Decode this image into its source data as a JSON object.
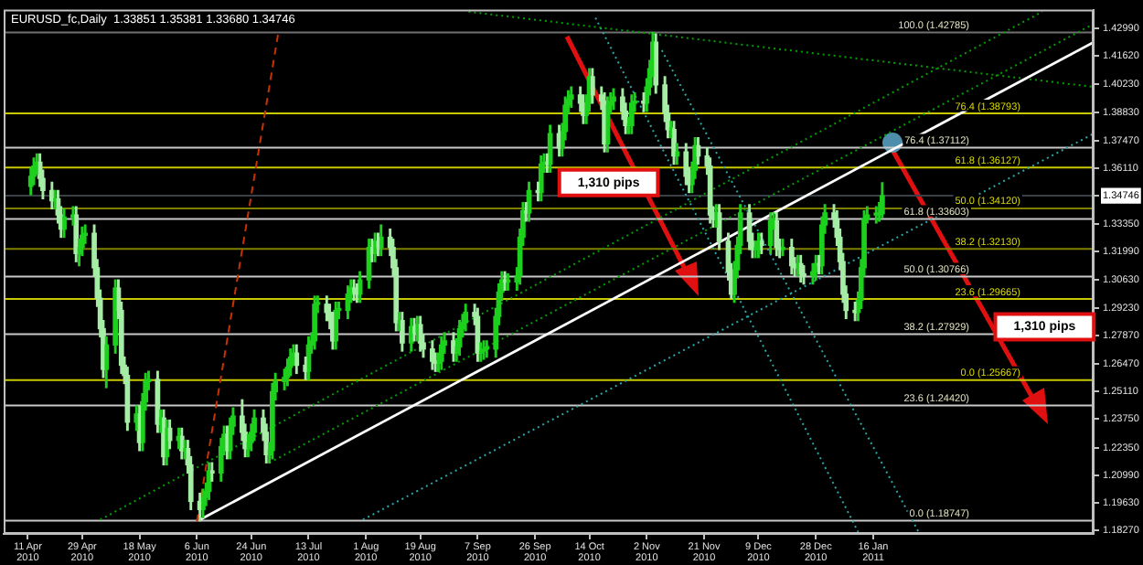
{
  "chart_data": {
    "type": "candlestick",
    "title": "EURUSD_fc,Daily  1.33851 1.35381 1.33680 1.34746",
    "marker": "none",
    "colors": [
      "#1ed01e",
      "#1ed01e",
      "#1ed01e",
      "#a5eca5",
      "#a5eca5",
      "#a5eca5",
      "#1ed01e",
      "#a5eca5",
      "#a5eca5",
      "#1ed01e",
      "#1ed01e",
      "#a5eca5",
      "#1ed01e",
      "#1ed01e",
      "#1ed01e",
      "#a5eca5",
      "#a5eca5",
      "#a5eca5",
      "#a5eca5",
      "#1ed01e",
      "#1ed01e",
      "#a5eca5",
      "#a5eca5",
      "#a5eca5",
      "#a5eca5",
      "#1ed01e",
      "#a5eca5",
      "#1ed01e",
      "#1ed01e",
      "#1ed01e",
      "#a5eca5",
      "#1ed01e",
      "#a5eca5",
      "#1ed01e",
      "#a5eca5",
      "#1ed01e",
      "#a5eca5",
      "#1ed01e",
      "#a5eca5",
      "#a5eca5",
      "#a5eca5",
      "#1ed01e",
      "#1ed01e",
      "#1ed01e",
      "#a5eca5",
      "#1ed01e",
      "#1ed01e",
      "#a5eca5",
      "#1ed01e",
      "#1ed01e",
      "#a5eca5",
      "#a5eca5",
      "#1ed01e",
      "#1ed01e",
      "#1ed01e",
      "#a5eca5",
      "#a5eca5",
      "#1ed01e",
      "#1ed01e",
      "#1ed01e",
      "#1ed01e",
      "#1ed01e",
      "#1ed01e",
      "#1ed01e",
      "#a5eca5",
      "#a5eca5",
      "#1ed01e",
      "#1ed01e",
      "#1ed01e",
      "#1ed01e",
      "#a5eca5",
      "#a5eca5",
      "#a5eca5",
      "#1ed01e",
      "#1ed01e",
      "#1ed01e",
      "#1ed01e",
      "#a5eca5",
      "#a5eca5",
      "#1ed01e",
      "#1ed01e",
      "#a5eca5",
      "#1ed01e",
      "#a5eca5",
      "#1ed01e",
      "#a5eca5",
      "#a5eca5",
      "#a5eca5",
      "#1ed01e",
      "#a5eca5",
      "#1ed01e",
      "#a5eca5",
      "#1ed01e",
      "#a5eca5",
      "#a5eca5",
      "#a5eca5",
      "#a5eca5",
      "#1ed01e",
      "#1ed01e",
      "#1ed01e",
      "#a5eca5",
      "#1ed01e",
      "#1ed01e",
      "#1ed01e",
      "#1ed01e",
      "#a5eca5",
      "#a5eca5",
      "#1ed01e",
      "#1ed01e",
      "#1ed01e",
      "#1ed01e",
      "#1ed01e",
      "#1ed01e",
      "#a5eca5",
      "#1ed01e",
      "#1ed01e",
      "#1ed01e",
      "#1ed01e",
      "#a5eca5",
      "#1ed01e",
      "#a5eca5",
      "#1ed01e",
      "#1ed01e",
      "#a5eca5",
      "#1ed01e",
      "#a5eca5",
      "#1ed01e",
      "#1ed01e",
      "#1ed01e",
      "#1ed01e",
      "#a5eca5",
      "#a5eca5",
      "#1ed01e",
      "#1ed01e",
      "#a5eca5",
      "#a5eca5",
      "#a5eca5",
      "#1ed01e",
      "#1ed01e",
      "#1ed01e",
      "#a5eca5",
      "#a5eca5",
      "#1ed01e",
      "#1ed01e",
      "#1ed01e",
      "#a5eca5",
      "#1ed01e",
      "#1ed01e",
      "#1ed01e",
      "#a5eca5",
      "#a5eca5",
      "#a5eca5",
      "#1ed01e",
      "#a5eca5",
      "#1ed01e",
      "#a5eca5",
      "#a5eca5",
      "#1ed01e",
      "#1ed01e",
      "#a5eca5",
      "#a5eca5",
      "#a5eca5",
      "#a5eca5",
      "#1ed01e",
      "#a5eca5",
      "#a5eca5",
      "#a5eca5",
      "#1ed01e",
      "#1ed01e",
      "#1ed01e",
      "#a5eca5",
      "#a5eca5",
      "#1ed01e",
      "#1ed01e",
      "#a5eca5",
      "#1ed01e",
      "#1ed01e",
      "#a5eca5",
      "#a5eca5",
      "#1ed01e",
      "#a5eca5",
      "#a5eca5",
      "#1ed01e",
      "#a5eca5",
      "#a5eca5",
      "#1ed01e",
      "#1ed01e",
      "#a5eca5",
      "#1ed01e",
      "#1ed01e",
      "#a5eca5",
      "#a5eca5",
      "#a5eca5",
      "#a5eca5",
      "#a5eca5",
      "#a5eca5",
      "#1ed01e",
      "#1ed01e",
      "#1ed01e",
      "#1ed01e",
      "#1ed01e",
      "#1ed01e",
      "#1ed01e"
    ],
    "x": [
      "2010-04-12",
      "2010-04-13",
      "2010-04-14",
      "2010-04-15",
      "2010-04-16",
      "2010-04-19",
      "2010-04-20",
      "2010-04-21",
      "2010-04-22",
      "2010-04-23",
      "2010-04-26",
      "2010-04-27",
      "2010-04-28",
      "2010-04-29",
      "2010-04-30",
      "2010-05-03",
      "2010-05-04",
      "2010-05-05",
      "2010-05-06",
      "2010-05-07",
      "2010-05-10",
      "2010-05-11",
      "2010-05-12",
      "2010-05-13",
      "2010-05-14",
      "2010-05-17",
      "2010-05-18",
      "2010-05-19",
      "2010-05-20",
      "2010-05-21",
      "2010-05-24",
      "2010-05-25",
      "2010-05-26",
      "2010-05-27",
      "2010-05-28",
      "2010-05-31",
      "2010-06-01",
      "2010-06-02",
      "2010-06-03",
      "2010-06-04",
      "2010-06-07",
      "2010-06-08",
      "2010-06-09",
      "2010-06-10",
      "2010-06-11",
      "2010-06-14",
      "2010-06-15",
      "2010-06-16",
      "2010-06-17",
      "2010-06-18",
      "2010-06-21",
      "2010-06-22",
      "2010-06-23",
      "2010-06-24",
      "2010-06-25",
      "2010-06-28",
      "2010-06-29",
      "2010-06-30",
      "2010-07-01",
      "2010-07-02",
      "2010-07-05",
      "2010-07-06",
      "2010-07-07",
      "2010-07-08",
      "2010-07-09",
      "2010-07-12",
      "2010-07-13",
      "2010-07-14",
      "2010-07-15",
      "2010-07-16",
      "2010-07-19",
      "2010-07-20",
      "2010-07-21",
      "2010-07-22",
      "2010-07-23",
      "2010-07-26",
      "2010-07-27",
      "2010-07-28",
      "2010-07-29",
      "2010-07-30",
      "2010-08-02",
      "2010-08-03",
      "2010-08-04",
      "2010-08-05",
      "2010-08-06",
      "2010-08-09",
      "2010-08-10",
      "2010-08-11",
      "2010-08-12",
      "2010-08-13",
      "2010-08-16",
      "2010-08-17",
      "2010-08-18",
      "2010-08-19",
      "2010-08-20",
      "2010-08-23",
      "2010-08-24",
      "2010-08-25",
      "2010-08-26",
      "2010-08-27",
      "2010-08-30",
      "2010-08-31",
      "2010-09-01",
      "2010-09-02",
      "2010-09-03",
      "2010-09-06",
      "2010-09-07",
      "2010-09-08",
      "2010-09-09",
      "2010-09-10",
      "2010-09-13",
      "2010-09-14",
      "2010-09-15",
      "2010-09-16",
      "2010-09-17",
      "2010-09-20",
      "2010-09-21",
      "2010-09-22",
      "2010-09-23",
      "2010-09-24",
      "2010-09-27",
      "2010-09-28",
      "2010-09-29",
      "2010-09-30",
      "2010-10-01",
      "2010-10-04",
      "2010-10-05",
      "2010-10-06",
      "2010-10-07",
      "2010-10-08",
      "2010-10-11",
      "2010-10-12",
      "2010-10-13",
      "2010-10-14",
      "2010-10-15",
      "2010-10-18",
      "2010-10-19",
      "2010-10-20",
      "2010-10-21",
      "2010-10-22",
      "2010-10-25",
      "2010-10-26",
      "2010-10-27",
      "2010-10-28",
      "2010-10-29",
      "2010-11-01",
      "2010-11-02",
      "2010-11-03",
      "2010-11-04",
      "2010-11-05",
      "2010-11-08",
      "2010-11-09",
      "2010-11-10",
      "2010-11-11",
      "2010-11-12",
      "2010-11-15",
      "2010-11-16",
      "2010-11-17",
      "2010-11-18",
      "2010-11-19",
      "2010-11-22",
      "2010-11-23",
      "2010-11-24",
      "2010-11-25",
      "2010-11-26",
      "2010-11-29",
      "2010-11-30",
      "2010-12-01",
      "2010-12-02",
      "2010-12-03",
      "2010-12-06",
      "2010-12-07",
      "2010-12-08",
      "2010-12-09",
      "2010-12-10",
      "2010-12-13",
      "2010-12-14",
      "2010-12-15",
      "2010-12-16",
      "2010-12-17",
      "2010-12-20",
      "2010-12-21",
      "2010-12-22",
      "2010-12-23",
      "2010-12-24",
      "2010-12-27",
      "2010-12-28",
      "2010-12-29",
      "2010-12-30",
      "2010-12-31",
      "2011-01-03",
      "2011-01-04",
      "2011-01-05",
      "2011-01-06",
      "2011-01-07",
      "2011-01-10",
      "2011-01-11",
      "2011-01-12",
      "2011-01-13",
      "2011-01-14",
      "2011-01-17",
      "2011-01-18",
      "2011-01-19"
    ],
    "ohlc": [
      [
        1.352,
        1.361,
        1.348,
        1.357
      ],
      [
        1.357,
        1.366,
        1.353,
        1.362
      ],
      [
        1.362,
        1.368,
        1.358,
        1.364
      ],
      [
        1.364,
        1.368,
        1.352,
        1.356
      ],
      [
        1.356,
        1.36,
        1.346,
        1.35
      ],
      [
        1.35,
        1.354,
        1.341,
        1.345
      ],
      [
        1.345,
        1.35,
        1.341,
        1.346
      ],
      [
        1.346,
        1.35,
        1.334,
        1.338
      ],
      [
        1.338,
        1.342,
        1.327,
        1.331
      ],
      [
        1.331,
        1.341,
        1.327,
        1.337
      ],
      [
        1.337,
        1.342,
        1.333,
        1.338
      ],
      [
        1.338,
        1.342,
        1.315,
        1.319
      ],
      [
        1.319,
        1.326,
        1.313,
        1.322
      ],
      [
        1.322,
        1.332,
        1.318,
        1.328
      ],
      [
        1.328,
        1.333,
        1.324,
        1.329
      ],
      [
        1.329,
        1.333,
        1.308,
        1.312
      ],
      [
        1.312,
        1.316,
        1.293,
        1.297
      ],
      [
        1.297,
        1.301,
        1.278,
        1.282
      ],
      [
        1.282,
        1.286,
        1.258,
        1.262
      ],
      [
        1.262,
        1.278,
        1.253,
        1.274
      ],
      [
        1.274,
        1.306,
        1.27,
        1.302
      ],
      [
        1.302,
        1.306,
        1.287,
        1.291
      ],
      [
        1.291,
        1.295,
        1.26,
        1.264
      ],
      [
        1.264,
        1.268,
        1.255,
        1.259
      ],
      [
        1.259,
        1.263,
        1.232,
        1.236
      ],
      [
        1.236,
        1.244,
        1.232,
        1.24
      ],
      [
        1.24,
        1.244,
        1.222,
        1.226
      ],
      [
        1.226,
        1.25,
        1.222,
        1.246
      ],
      [
        1.246,
        1.26,
        1.242,
        1.256
      ],
      [
        1.256,
        1.261,
        1.252,
        1.257
      ],
      [
        1.257,
        1.261,
        1.231,
        1.235
      ],
      [
        1.235,
        1.242,
        1.231,
        1.238
      ],
      [
        1.238,
        1.242,
        1.215,
        1.219
      ],
      [
        1.219,
        1.237,
        1.215,
        1.233
      ],
      [
        1.233,
        1.237,
        1.223,
        1.227
      ],
      [
        1.227,
        1.233,
        1.223,
        1.229
      ],
      [
        1.229,
        1.233,
        1.218,
        1.222
      ],
      [
        1.222,
        1.227,
        1.218,
        1.223
      ],
      [
        1.223,
        1.227,
        1.211,
        1.215
      ],
      [
        1.215,
        1.219,
        1.193,
        1.197
      ],
      [
        1.197,
        1.201,
        1.18747,
        1.193
      ],
      [
        1.193,
        1.203,
        1.189,
        1.199
      ],
      [
        1.199,
        1.206,
        1.195,
        1.202
      ],
      [
        1.202,
        1.216,
        1.198,
        1.212
      ],
      [
        1.212,
        1.216,
        1.207,
        1.211
      ],
      [
        1.211,
        1.228,
        1.207,
        1.224
      ],
      [
        1.224,
        1.234,
        1.22,
        1.23
      ],
      [
        1.23,
        1.234,
        1.218,
        1.222
      ],
      [
        1.222,
        1.238,
        1.218,
        1.234
      ],
      [
        1.234,
        1.243,
        1.23,
        1.239
      ],
      [
        1.239,
        1.247,
        1.227,
        1.231
      ],
      [
        1.231,
        1.235,
        1.219,
        1.223
      ],
      [
        1.223,
        1.23,
        1.219,
        1.226
      ],
      [
        1.226,
        1.235,
        1.222,
        1.231
      ],
      [
        1.231,
        1.242,
        1.227,
        1.238
      ],
      [
        1.238,
        1.242,
        1.227,
        1.231
      ],
      [
        1.231,
        1.235,
        1.216,
        1.22
      ],
      [
        1.22,
        1.226,
        1.216,
        1.222
      ],
      [
        1.222,
        1.255,
        1.218,
        1.251
      ],
      [
        1.251,
        1.26,
        1.247,
        1.256
      ],
      [
        1.256,
        1.262,
        1.252,
        1.258
      ],
      [
        1.258,
        1.267,
        1.254,
        1.263
      ],
      [
        1.263,
        1.272,
        1.259,
        1.268
      ],
      [
        1.268,
        1.274,
        1.264,
        1.27
      ],
      [
        1.27,
        1.274,
        1.26,
        1.264
      ],
      [
        1.264,
        1.268,
        1.257,
        1.261
      ],
      [
        1.261,
        1.278,
        1.257,
        1.274
      ],
      [
        1.274,
        1.28,
        1.27,
        1.276
      ],
      [
        1.276,
        1.298,
        1.272,
        1.294
      ],
      [
        1.294,
        1.298,
        1.29,
        1.294
      ],
      [
        1.294,
        1.298,
        1.286,
        1.29
      ],
      [
        1.29,
        1.294,
        1.282,
        1.286
      ],
      [
        1.286,
        1.29,
        1.272,
        1.276
      ],
      [
        1.276,
        1.295,
        1.272,
        1.291
      ],
      [
        1.291,
        1.295,
        1.287,
        1.291
      ],
      [
        1.291,
        1.303,
        1.287,
        1.299
      ],
      [
        1.299,
        1.306,
        1.295,
        1.302
      ],
      [
        1.302,
        1.306,
        1.296,
        1.3
      ],
      [
        1.3,
        1.304,
        1.295,
        1.299
      ],
      [
        1.299,
        1.31,
        1.295,
        1.306
      ],
      [
        1.306,
        1.326,
        1.302,
        1.322
      ],
      [
        1.322,
        1.326,
        1.315,
        1.319
      ],
      [
        1.319,
        1.329,
        1.315,
        1.325
      ],
      [
        1.325,
        1.329,
        1.318,
        1.322
      ],
      [
        1.322,
        1.333,
        1.318,
        1.327
      ],
      [
        1.327,
        1.331,
        1.318,
        1.322
      ],
      [
        1.322,
        1.326,
        1.308,
        1.312
      ],
      [
        1.312,
        1.316,
        1.281,
        1.285
      ],
      [
        1.285,
        1.29,
        1.281,
        1.286
      ],
      [
        1.286,
        1.29,
        1.271,
        1.275
      ],
      [
        1.275,
        1.287,
        1.271,
        1.283
      ],
      [
        1.283,
        1.287,
        1.276,
        1.28
      ],
      [
        1.28,
        1.288,
        1.276,
        1.284
      ],
      [
        1.284,
        1.288,
        1.271,
        1.275
      ],
      [
        1.275,
        1.279,
        1.268,
        1.272
      ],
      [
        1.272,
        1.276,
        1.262,
        1.266
      ],
      [
        1.266,
        1.27,
        1.261,
        1.265
      ],
      [
        1.265,
        1.27,
        1.261,
        1.266
      ],
      [
        1.266,
        1.278,
        1.262,
        1.274
      ],
      [
        1.274,
        1.28,
        1.27,
        1.276
      ],
      [
        1.276,
        1.28,
        1.266,
        1.27
      ],
      [
        1.27,
        1.277,
        1.266,
        1.273
      ],
      [
        1.273,
        1.286,
        1.269,
        1.282
      ],
      [
        1.282,
        1.289,
        1.278,
        1.285
      ],
      [
        1.285,
        1.294,
        1.281,
        1.29
      ],
      [
        1.29,
        1.294,
        1.284,
        1.288
      ],
      [
        1.288,
        1.292,
        1.266,
        1.27
      ],
      [
        1.27,
        1.275,
        1.266,
        1.271
      ],
      [
        1.271,
        1.276,
        1.267,
        1.272
      ],
      [
        1.272,
        1.276,
        1.268,
        1.272
      ],
      [
        1.272,
        1.292,
        1.268,
        1.288
      ],
      [
        1.288,
        1.304,
        1.284,
        1.3
      ],
      [
        1.3,
        1.31,
        1.296,
        1.306
      ],
      [
        1.306,
        1.31,
        1.301,
        1.305
      ],
      [
        1.305,
        1.309,
        1.301,
        1.305
      ],
      [
        1.305,
        1.312,
        1.301,
        1.308
      ],
      [
        1.308,
        1.331,
        1.304,
        1.327
      ],
      [
        1.327,
        1.344,
        1.323,
        1.34
      ],
      [
        1.34,
        1.344,
        1.335,
        1.339
      ],
      [
        1.339,
        1.354,
        1.335,
        1.35
      ],
      [
        1.35,
        1.354,
        1.345,
        1.349
      ],
      [
        1.349,
        1.367,
        1.345,
        1.363
      ],
      [
        1.363,
        1.368,
        1.359,
        1.364
      ],
      [
        1.364,
        1.368,
        1.359,
        1.363
      ],
      [
        1.363,
        1.382,
        1.359,
        1.378
      ],
      [
        1.378,
        1.382,
        1.367,
        1.371
      ],
      [
        1.371,
        1.383,
        1.367,
        1.379
      ],
      [
        1.379,
        1.396,
        1.375,
        1.392
      ],
      [
        1.392,
        1.399,
        1.388,
        1.395
      ],
      [
        1.395,
        1.401,
        1.391,
        1.397
      ],
      [
        1.397,
        1.401,
        1.389,
        1.393
      ],
      [
        1.393,
        1.397,
        1.383,
        1.387
      ],
      [
        1.387,
        1.397,
        1.383,
        1.393
      ],
      [
        1.393,
        1.41,
        1.389,
        1.406
      ],
      [
        1.406,
        1.41,
        1.393,
        1.397
      ],
      [
        1.397,
        1.401,
        1.39,
        1.394
      ],
      [
        1.394,
        1.398,
        1.369,
        1.373
      ],
      [
        1.373,
        1.396,
        1.369,
        1.392
      ],
      [
        1.392,
        1.398,
        1.388,
        1.394
      ],
      [
        1.394,
        1.4,
        1.39,
        1.396
      ],
      [
        1.396,
        1.4,
        1.385,
        1.389
      ],
      [
        1.389,
        1.393,
        1.378,
        1.382
      ],
      [
        1.382,
        1.386,
        1.378,
        1.382
      ],
      [
        1.382,
        1.397,
        1.378,
        1.393
      ],
      [
        1.393,
        1.398,
        1.389,
        1.394
      ],
      [
        1.394,
        1.398,
        1.389,
        1.393
      ],
      [
        1.393,
        1.405,
        1.389,
        1.401
      ],
      [
        1.401,
        1.414,
        1.397,
        1.41
      ],
      [
        1.41,
        1.42785,
        1.406,
        1.423
      ],
      [
        1.423,
        1.427,
        1.398,
        1.402
      ],
      [
        1.402,
        1.406,
        1.384,
        1.388
      ],
      [
        1.388,
        1.392,
        1.376,
        1.38
      ],
      [
        1.38,
        1.384,
        1.376,
        1.38
      ],
      [
        1.38,
        1.384,
        1.363,
        1.367
      ],
      [
        1.367,
        1.373,
        1.363,
        1.369
      ],
      [
        1.369,
        1.373,
        1.353,
        1.357
      ],
      [
        1.357,
        1.361,
        1.349,
        1.353
      ],
      [
        1.353,
        1.364,
        1.349,
        1.36
      ],
      [
        1.36,
        1.376,
        1.356,
        1.372
      ],
      [
        1.372,
        1.376,
        1.363,
        1.367
      ],
      [
        1.367,
        1.371,
        1.358,
        1.362
      ],
      [
        1.362,
        1.366,
        1.334,
        1.338
      ],
      [
        1.338,
        1.342,
        1.332,
        1.336
      ],
      [
        1.336,
        1.343,
        1.332,
        1.339
      ],
      [
        1.339,
        1.343,
        1.321,
        1.325
      ],
      [
        1.325,
        1.329,
        1.306,
        1.31
      ],
      [
        1.31,
        1.314,
        1.2969,
        1.299
      ],
      [
        1.299,
        1.315,
        1.295,
        1.311
      ],
      [
        1.311,
        1.327,
        1.307,
        1.323
      ],
      [
        1.323,
        1.343,
        1.319,
        1.339
      ],
      [
        1.339,
        1.343,
        1.321,
        1.325
      ],
      [
        1.325,
        1.329,
        1.317,
        1.321
      ],
      [
        1.321,
        1.325,
        1.317,
        1.321
      ],
      [
        1.321,
        1.329,
        1.317,
        1.325
      ],
      [
        1.325,
        1.329,
        1.319,
        1.323
      ],
      [
        1.323,
        1.339,
        1.319,
        1.335
      ],
      [
        1.335,
        1.339,
        1.331,
        1.335
      ],
      [
        1.335,
        1.339,
        1.318,
        1.322
      ],
      [
        1.322,
        1.326,
        1.317,
        1.321
      ],
      [
        1.321,
        1.326,
        1.318,
        1.322
      ],
      [
        1.322,
        1.326,
        1.309,
        1.313
      ],
      [
        1.313,
        1.317,
        1.308,
        1.312
      ],
      [
        1.312,
        1.318,
        1.308,
        1.314
      ],
      [
        1.314,
        1.318,
        1.305,
        1.309
      ],
      [
        1.309,
        1.313,
        1.304,
        1.308
      ],
      [
        1.308,
        1.314,
        1.304,
        1.31
      ],
      [
        1.31,
        1.318,
        1.306,
        1.314
      ],
      [
        1.314,
        1.318,
        1.309,
        1.313
      ],
      [
        1.313,
        1.337,
        1.309,
        1.333
      ],
      [
        1.333,
        1.343,
        1.329,
        1.339
      ],
      [
        1.339,
        1.343,
        1.332,
        1.336
      ],
      [
        1.336,
        1.34,
        1.323,
        1.327
      ],
      [
        1.327,
        1.331,
        1.311,
        1.315
      ],
      [
        1.315,
        1.319,
        1.295,
        1.299
      ],
      [
        1.299,
        1.303,
        1.287,
        1.291
      ],
      [
        1.291,
        1.295,
        1.286,
        1.29
      ],
      [
        1.29,
        1.3,
        1.286,
        1.296
      ],
      [
        1.296,
        1.316,
        1.292,
        1.312
      ],
      [
        1.312,
        1.34,
        1.308,
        1.336
      ],
      [
        1.336,
        1.342,
        1.334,
        1.338
      ],
      [
        1.338,
        1.342,
        1.334,
        1.338
      ],
      [
        1.338,
        1.344,
        1.335,
        1.3385
      ],
      [
        1.33851,
        1.35381,
        1.3368,
        1.34746
      ]
    ],
    "series": [
      {
        "type": "line",
        "color": "#ffffff",
        "line_style": "solid",
        "x": [
          "2010-06-07",
          "2011-03-30"
        ],
        "values": [
          1.188,
          1.423
        ]
      },
      {
        "type": "line",
        "color": "#c83200",
        "line_style": "dashed",
        "x": [
          "2010-06-06",
          "2010-07-03"
        ],
        "values": [
          1.187,
          1.428
        ]
      },
      {
        "type": "line",
        "color": "#00a000",
        "line_style": "dotted",
        "x": [
          "2010-05-05",
          "2011-03-13"
        ],
        "values": [
          1.188,
          1.438
        ]
      },
      {
        "type": "line",
        "color": "#00a000",
        "line_style": "dotted",
        "x": [
          "2010-06-30",
          "2011-03-30"
        ],
        "values": [
          1.216,
          1.432
        ]
      },
      {
        "type": "line",
        "color": "#00a000",
        "line_style": "dotted",
        "x": [
          "2010-09-04",
          "2011-03-30"
        ],
        "values": [
          1.438,
          1.401
        ]
      },
      {
        "type": "line",
        "color": "#2aa8a8",
        "line_style": "dotted",
        "x": [
          "2010-10-16",
          "2011-01-11"
        ],
        "values": [
          1.435,
          1.182
        ]
      },
      {
        "type": "line",
        "color": "#2aa8a8",
        "line_style": "dotted",
        "x": [
          "2010-11-07",
          "2011-01-31"
        ],
        "values": [
          1.419,
          1.182
        ]
      },
      {
        "type": "line",
        "color": "#2aa8a8",
        "line_style": "dotted",
        "x": [
          "2010-07-31",
          "2011-03-30"
        ],
        "values": [
          1.188,
          1.378
        ]
      }
    ],
    "xlim": [
      "2010-04-03",
      "2011-03-30"
    ],
    "xticks": [
      {
        "value": "2010-04-11",
        "label": "11 Apr 2010"
      },
      {
        "value": "2010-04-29",
        "label": "29 Apr 2010"
      },
      {
        "value": "2010-05-18",
        "label": "18 May 2010"
      },
      {
        "value": "2010-06-06",
        "label": "6 Jun 2010"
      },
      {
        "value": "2010-06-24",
        "label": "24 Jun 2010"
      },
      {
        "value": "2010-07-13",
        "label": "13 Jul 2010"
      },
      {
        "value": "2010-08-01",
        "label": "1 Aug 2010"
      },
      {
        "value": "2010-08-19",
        "label": "19 Aug 2010"
      },
      {
        "value": "2010-09-07",
        "label": "7 Sep 2010"
      },
      {
        "value": "2010-09-26",
        "label": "26 Sep 2010"
      },
      {
        "value": "2010-10-14",
        "label": "14 Oct 2010"
      },
      {
        "value": "2010-11-02",
        "label": "2 Nov 2010"
      },
      {
        "value": "2010-11-21",
        "label": "21 Nov 2010"
      },
      {
        "value": "2010-12-09",
        "label": "9 Dec 2010"
      },
      {
        "value": "2010-12-28",
        "label": "28 Dec 2010"
      },
      {
        "value": "2011-01-16",
        "label": "16 Jan 2011"
      }
    ],
    "ylim": [
      1.181,
      1.439
    ],
    "yticks": [
      {
        "value": 1.4299,
        "label": "1.42990"
      },
      {
        "value": 1.4162,
        "label": "1.41620"
      },
      {
        "value": 1.4023,
        "label": "1.40230"
      },
      {
        "value": 1.3883,
        "label": "1.38830"
      },
      {
        "value": 1.3747,
        "label": "1.37470"
      },
      {
        "value": 1.3611,
        "label": "1.36110"
      },
      1.34746,
      {
        "value": 1.3335,
        "label": "1.33350"
      },
      {
        "value": 1.3199,
        "label": "1.31990"
      },
      {
        "value": 1.3063,
        "label": "1.30630"
      },
      {
        "value": 1.2923,
        "label": "1.29230"
      },
      {
        "value": 1.2787,
        "label": "1.27870"
      },
      {
        "value": 1.2647,
        "label": "1.26470"
      },
      {
        "value": 1.2511,
        "label": "1.25110"
      },
      {
        "value": 1.2375,
        "label": "1.23750"
      },
      {
        "value": 1.2235,
        "label": "1.22350"
      },
      {
        "value": 1.2099,
        "label": "1.20990"
      },
      {
        "value": 1.1963,
        "label": "1.19630"
      },
      {
        "value": 1.1827,
        "label": "1.18270"
      }
    ],
    "ref_lines": [
      {
        "axis": "y",
        "value": 1.34746,
        "color": "#3a4048"
      },
      {
        "axis": "y",
        "value": 1.42785,
        "label": "100.0 (1.42785)",
        "color": "#707070"
      },
      {
        "axis": "y",
        "value": 1.37112,
        "label": "76.4 (1.37112)",
        "color": "#c8c8c8"
      },
      {
        "axis": "y",
        "value": 1.33603,
        "label": "61.8 (1.33603)",
        "color": "#c8c8c8"
      },
      {
        "axis": "y",
        "value": 1.30766,
        "label": "50.0 (1.30766)",
        "color": "#c8c8c8"
      },
      {
        "axis": "y",
        "value": 1.27929,
        "label": "38.2 (1.27929)",
        "color": "#c8c8c8"
      },
      {
        "axis": "y",
        "value": 1.2442,
        "label": "23.6 (1.24420)",
        "color": "#c8c8c8"
      },
      {
        "axis": "y",
        "value": 1.18747,
        "label": "0.0 (1.18747)",
        "color": "#c8c8c8"
      },
      {
        "axis": "y",
        "value": 1.38793,
        "label": "76.4 (1.38793)",
        "color": "#c8c800"
      },
      {
        "axis": "y",
        "value": 1.36127,
        "label": "61.8 (1.36127)",
        "color": "#c8c800"
      },
      {
        "axis": "y",
        "value": 1.3412,
        "label": "50.0 (1.34120)",
        "color": "#808000"
      },
      {
        "axis": "y",
        "value": 1.3213,
        "label": "38.2 (1.32130)",
        "color": "#808000"
      },
      {
        "axis": "y",
        "value": 1.29665,
        "label": "23.6 (1.29665)",
        "color": "#c8c800"
      },
      {
        "axis": "y",
        "value": 1.25667,
        "label": "0.0 (1.25667)",
        "color": "#c8c800"
      }
    ],
    "annotations": [
      "1,310 pips",
      "1,310 pips"
    ]
  }
}
